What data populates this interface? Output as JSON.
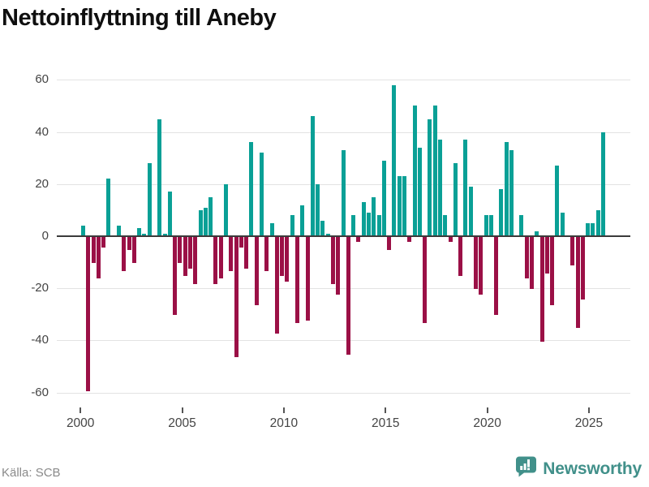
{
  "title": "Nettoinflyttning till Aneby",
  "source": "Källa: SCB",
  "logo": {
    "text": "Newsworthy",
    "icon": "speech-bubble-bar-chart-icon"
  },
  "colors": {
    "positive_bar": "#0aa096",
    "negative_bar": "#9b1046",
    "grid": "#e3e3e3",
    "zero_line": "#3b3b3b",
    "title_text": "#0f0f0f",
    "axis_text": "#444444",
    "source_text": "#8a8a8a",
    "logo_teal": "#41908a",
    "background": "#ffffff"
  },
  "chart_data": {
    "type": "bar",
    "title": "Nettoinflyttning till Aneby",
    "x_unit": "quarter",
    "start_period": "2000 Q1",
    "end_period": "2025 Q3",
    "x_ticks": [
      "2000",
      "2005",
      "2010",
      "2015",
      "2020",
      "2025"
    ],
    "y_ticks": [
      60,
      40,
      20,
      0,
      -20,
      -40,
      -60
    ],
    "ylim": [
      -62,
      62
    ],
    "grid": true,
    "legend": false,
    "years": [
      {
        "year": 2000,
        "q": [
          4,
          -59,
          -10,
          -16
        ]
      },
      {
        "year": 2001,
        "q": [
          -4,
          22,
          0,
          4
        ]
      },
      {
        "year": 2002,
        "q": [
          -13,
          -5,
          -10,
          3
        ]
      },
      {
        "year": 2003,
        "q": [
          1,
          28,
          0,
          45
        ]
      },
      {
        "year": 2004,
        "q": [
          1,
          17,
          -30,
          -10
        ]
      },
      {
        "year": 2005,
        "q": [
          -15,
          -12,
          -18,
          10
        ]
      },
      {
        "year": 2006,
        "q": [
          11,
          15,
          -18,
          -16
        ]
      },
      {
        "year": 2007,
        "q": [
          20,
          -13,
          -46,
          -4
        ]
      },
      {
        "year": 2008,
        "q": [
          -12,
          36,
          -26,
          32
        ]
      },
      {
        "year": 2009,
        "q": [
          -13,
          5,
          -37,
          -15
        ]
      },
      {
        "year": 2010,
        "q": [
          -17,
          8,
          -33,
          12
        ]
      },
      {
        "year": 2011,
        "q": [
          -32,
          46,
          20,
          6
        ]
      },
      {
        "year": 2012,
        "q": [
          1,
          -18,
          -22,
          33
        ]
      },
      {
        "year": 2013,
        "q": [
          -45,
          8,
          -2,
          13
        ]
      },
      {
        "year": 2014,
        "q": [
          9,
          15,
          8,
          29
        ]
      },
      {
        "year": 2015,
        "q": [
          -5,
          58,
          23,
          23
        ]
      },
      {
        "year": 2016,
        "q": [
          -2,
          50,
          34,
          -33
        ]
      },
      {
        "year": 2017,
        "q": [
          45,
          50,
          37,
          8
        ]
      },
      {
        "year": 2018,
        "q": [
          -2,
          28,
          -15,
          37
        ]
      },
      {
        "year": 2019,
        "q": [
          19,
          -20,
          -22,
          8
        ]
      },
      {
        "year": 2020,
        "q": [
          8,
          -30,
          18,
          36
        ]
      },
      {
        "year": 2021,
        "q": [
          33,
          0,
          8,
          -16
        ]
      },
      {
        "year": 2022,
        "q": [
          -20,
          2,
          -40,
          -14
        ]
      },
      {
        "year": 2023,
        "q": [
          -26,
          27,
          9,
          0
        ]
      },
      {
        "year": 2024,
        "q": [
          -11,
          -35,
          -24,
          5
        ]
      },
      {
        "year": 2025,
        "q": [
          5,
          10,
          40
        ]
      }
    ]
  }
}
